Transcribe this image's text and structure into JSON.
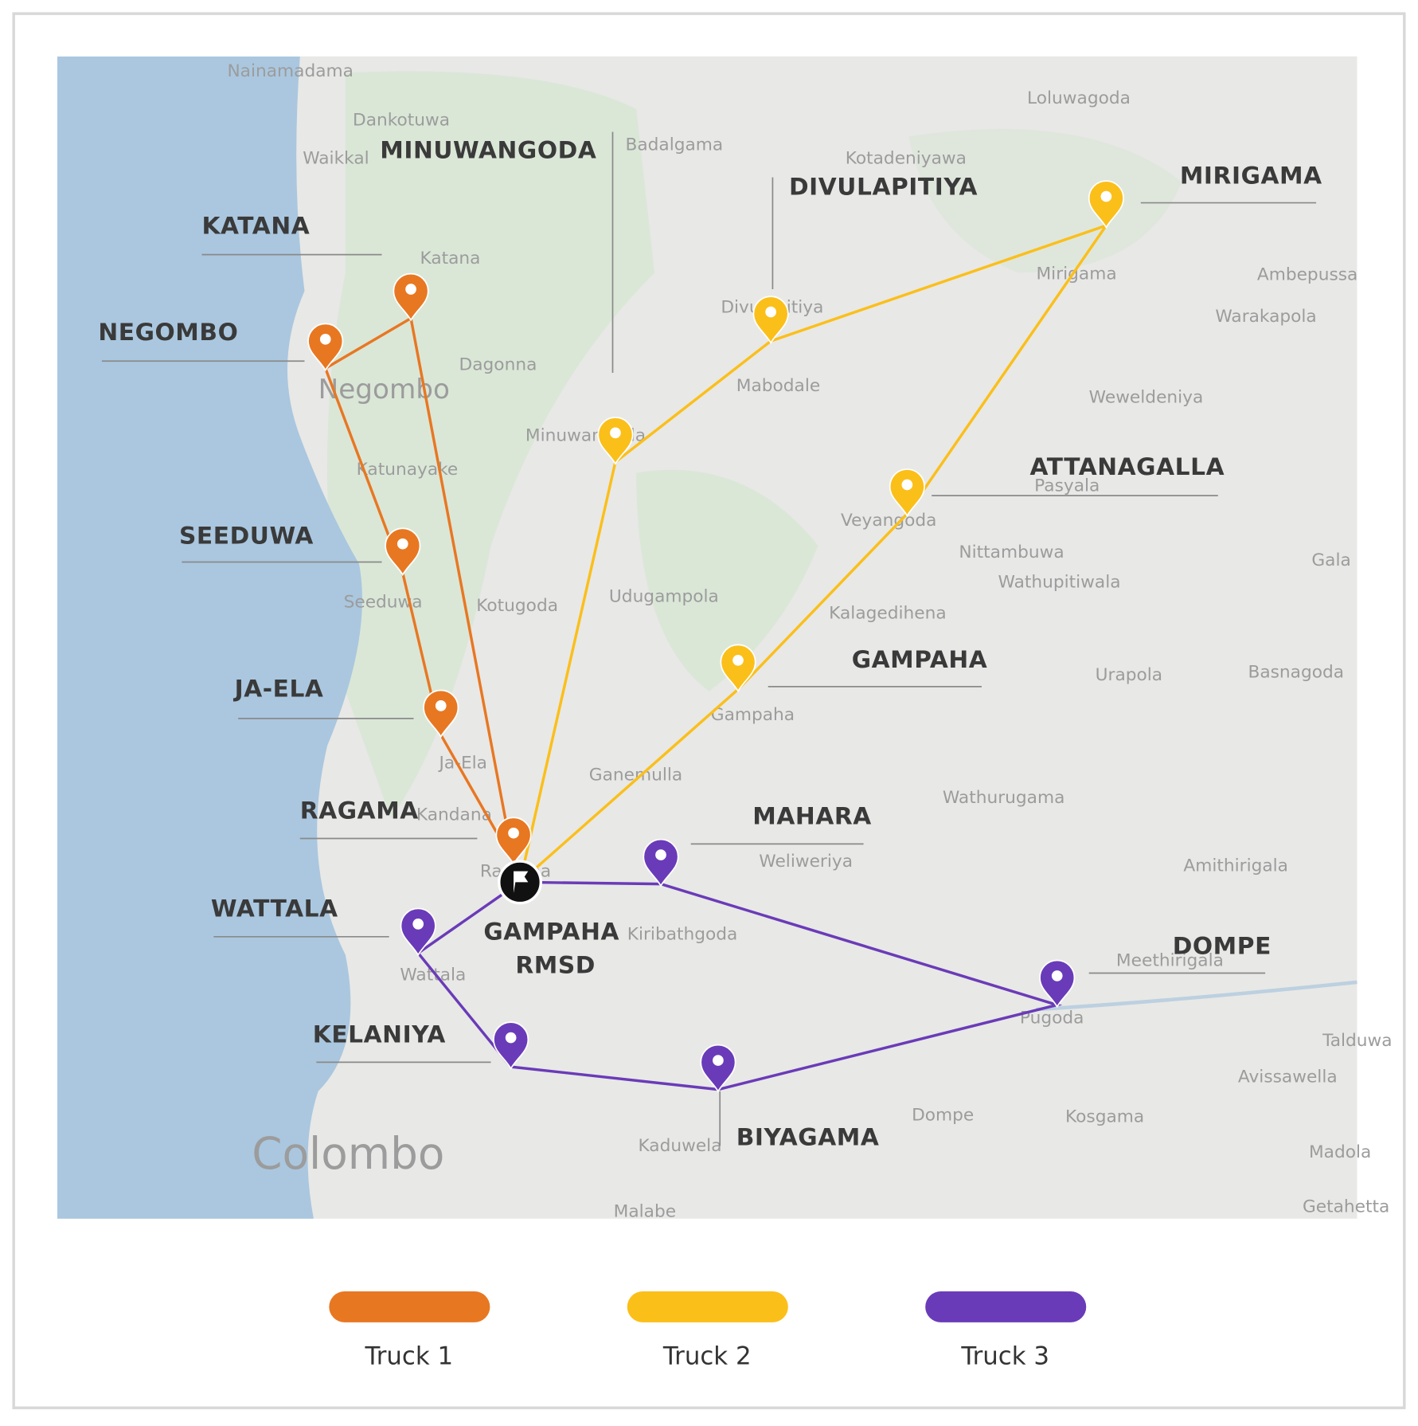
{
  "map": {
    "base_labels": [
      "Nainamadama",
      "Dankotuwa",
      "Waikkal",
      "Badalgama",
      "Loluwagoda",
      "Kotadeniyawa",
      "Katana",
      "Mirigama",
      "Ambepussa",
      "Warakapola",
      "Divulapitiya",
      "Dagonna",
      "Negombo",
      "Mabodale",
      "Weweldeniya",
      "Minuwangoda",
      "Katunayake",
      "Pasyala",
      "Veyangoda",
      "Nittambuwa",
      "Wathupitiwala",
      "Gala",
      "Seeduwa",
      "Kotugoda",
      "Udugampola",
      "Kalagedihena",
      "Urapola",
      "Basnagoda",
      "Gampaha",
      "Ja-Ela",
      "Ganemulla",
      "Kandana",
      "Wathurugama",
      "Ragama",
      "Weliweriya",
      "Amithirigala",
      "Kiribathgoda",
      "Meethirigala",
      "Wattala",
      "Pugoda",
      "Talduwa",
      "Avissawella",
      "Dompe",
      "Kosgama",
      "Kaduwela",
      "Madola",
      "Colombo",
      "Malabe",
      "Getahetta"
    ],
    "routes": [
      {
        "name": "Truck 1",
        "color": "#e87722",
        "stops": [
          {
            "label": "RAGAMA"
          },
          {
            "label": "KATANA"
          },
          {
            "label": "NEGOMBO"
          },
          {
            "label": "SEEDUWA"
          },
          {
            "label": "JA-ELA"
          }
        ]
      },
      {
        "name": "Truck 2",
        "color": "#fbbf1a",
        "stops": [
          {
            "label": "MINUWANGODA"
          },
          {
            "label": "DIVULAPITIYA"
          },
          {
            "label": "MIRIGAMA"
          },
          {
            "label": "ATTANAGALLA"
          },
          {
            "label": "GAMPAHA"
          }
        ]
      },
      {
        "name": "Truck 3",
        "color": "#6a3bb8",
        "stops": [
          {
            "label": "MAHARA"
          },
          {
            "label": "DOMPE"
          },
          {
            "label": "BIYAGAMA"
          },
          {
            "label": "KELANIYA"
          },
          {
            "label": "WATTALA"
          }
        ]
      }
    ],
    "depot": {
      "label": [
        "GAMPAHA",
        "RMSD"
      ]
    }
  }
}
